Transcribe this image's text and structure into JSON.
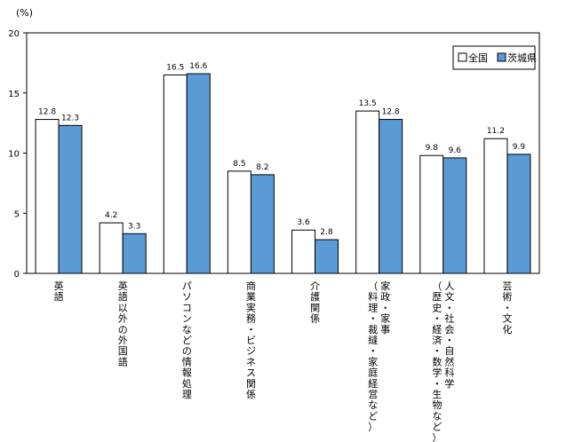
{
  "chart_data": {
    "type": "bar",
    "unit_label": "(%)",
    "categories": [
      [
        "英語"
      ],
      [
        "英語以外の外国語"
      ],
      [
        "パソコンなどの情報処理"
      ],
      [
        "商業実務・ビジネス関係"
      ],
      [
        "介護関係"
      ],
      [
        "家政・家事",
        "（料理・裁縫・家庭経営など）"
      ],
      [
        "人文・社会・自然科学",
        "（歴史・経済・数学・生物など）"
      ],
      [
        "芸術・文化"
      ]
    ],
    "series": [
      {
        "name": "全国",
        "color": "#ffffff",
        "values": [
          12.8,
          4.2,
          16.5,
          8.5,
          3.6,
          13.5,
          9.8,
          11.2
        ]
      },
      {
        "name": "茨城県",
        "color": "#5b9bd5",
        "values": [
          12.3,
          3.3,
          16.6,
          8.2,
          2.8,
          12.8,
          9.6,
          9.9
        ]
      }
    ],
    "ylim": [
      0,
      20
    ],
    "yticks": [
      0,
      5,
      10,
      15,
      20
    ],
    "legend_position": "top-right",
    "grid": false
  }
}
